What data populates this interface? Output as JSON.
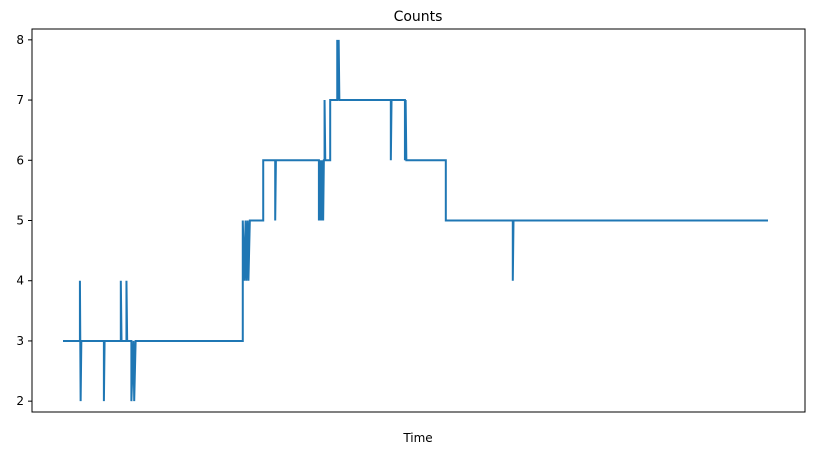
{
  "chart_data": {
    "type": "line",
    "title": "Counts",
    "xlabel": "Time",
    "ylabel": "",
    "xlim": [
      0,
      100
    ],
    "ylim": [
      1.82,
      8.18
    ],
    "yticks": [
      2,
      3,
      4,
      5,
      6,
      7,
      8
    ],
    "ytick_labels": [
      "2",
      "3",
      "4",
      "5",
      "6",
      "7",
      "8"
    ],
    "grid": false,
    "legend": "none",
    "series": [
      {
        "color": "#1f77b4",
        "step_points": [
          [
            0,
            3
          ],
          [
            2.4,
            3
          ],
          [
            2.4,
            4
          ],
          [
            2.5,
            2
          ],
          [
            2.6,
            3
          ],
          [
            5.8,
            3
          ],
          [
            5.8,
            2
          ],
          [
            5.9,
            3
          ],
          [
            8.2,
            3
          ],
          [
            8.2,
            4
          ],
          [
            8.3,
            3
          ],
          [
            9.0,
            3
          ],
          [
            9.0,
            4
          ],
          [
            9.1,
            3
          ],
          [
            9.7,
            3
          ],
          [
            9.7,
            2
          ],
          [
            10.0,
            3
          ],
          [
            10.1,
            2
          ],
          [
            10.3,
            3
          ],
          [
            25.5,
            3
          ],
          [
            25.5,
            5
          ],
          [
            25.7,
            4
          ],
          [
            25.9,
            5
          ],
          [
            26.0,
            4
          ],
          [
            26.2,
            5
          ],
          [
            26.3,
            4
          ],
          [
            26.5,
            5
          ],
          [
            28.4,
            5
          ],
          [
            28.4,
            6
          ],
          [
            30.1,
            6
          ],
          [
            30.1,
            5
          ],
          [
            30.2,
            6
          ],
          [
            36.3,
            6
          ],
          [
            36.3,
            5
          ],
          [
            36.4,
            6
          ],
          [
            36.5,
            5
          ],
          [
            36.6,
            6
          ],
          [
            36.7,
            5
          ],
          [
            36.8,
            6
          ],
          [
            36.9,
            5
          ],
          [
            37.0,
            6
          ],
          [
            37.1,
            6
          ],
          [
            37.1,
            7
          ],
          [
            37.2,
            6
          ],
          [
            37.9,
            6
          ],
          [
            37.9,
            7
          ],
          [
            38.9,
            7
          ],
          [
            38.9,
            8
          ],
          [
            39.0,
            7
          ],
          [
            39.1,
            8
          ],
          [
            39.2,
            7
          ],
          [
            46.5,
            7
          ],
          [
            46.5,
            6
          ],
          [
            46.6,
            7
          ],
          [
            48.5,
            7
          ],
          [
            48.5,
            6
          ],
          [
            48.6,
            7
          ],
          [
            48.7,
            6
          ],
          [
            54.3,
            6
          ],
          [
            54.3,
            5
          ],
          [
            63.8,
            5
          ],
          [
            63.8,
            4
          ],
          [
            63.9,
            5
          ],
          [
            100,
            5
          ]
        ]
      }
    ]
  }
}
